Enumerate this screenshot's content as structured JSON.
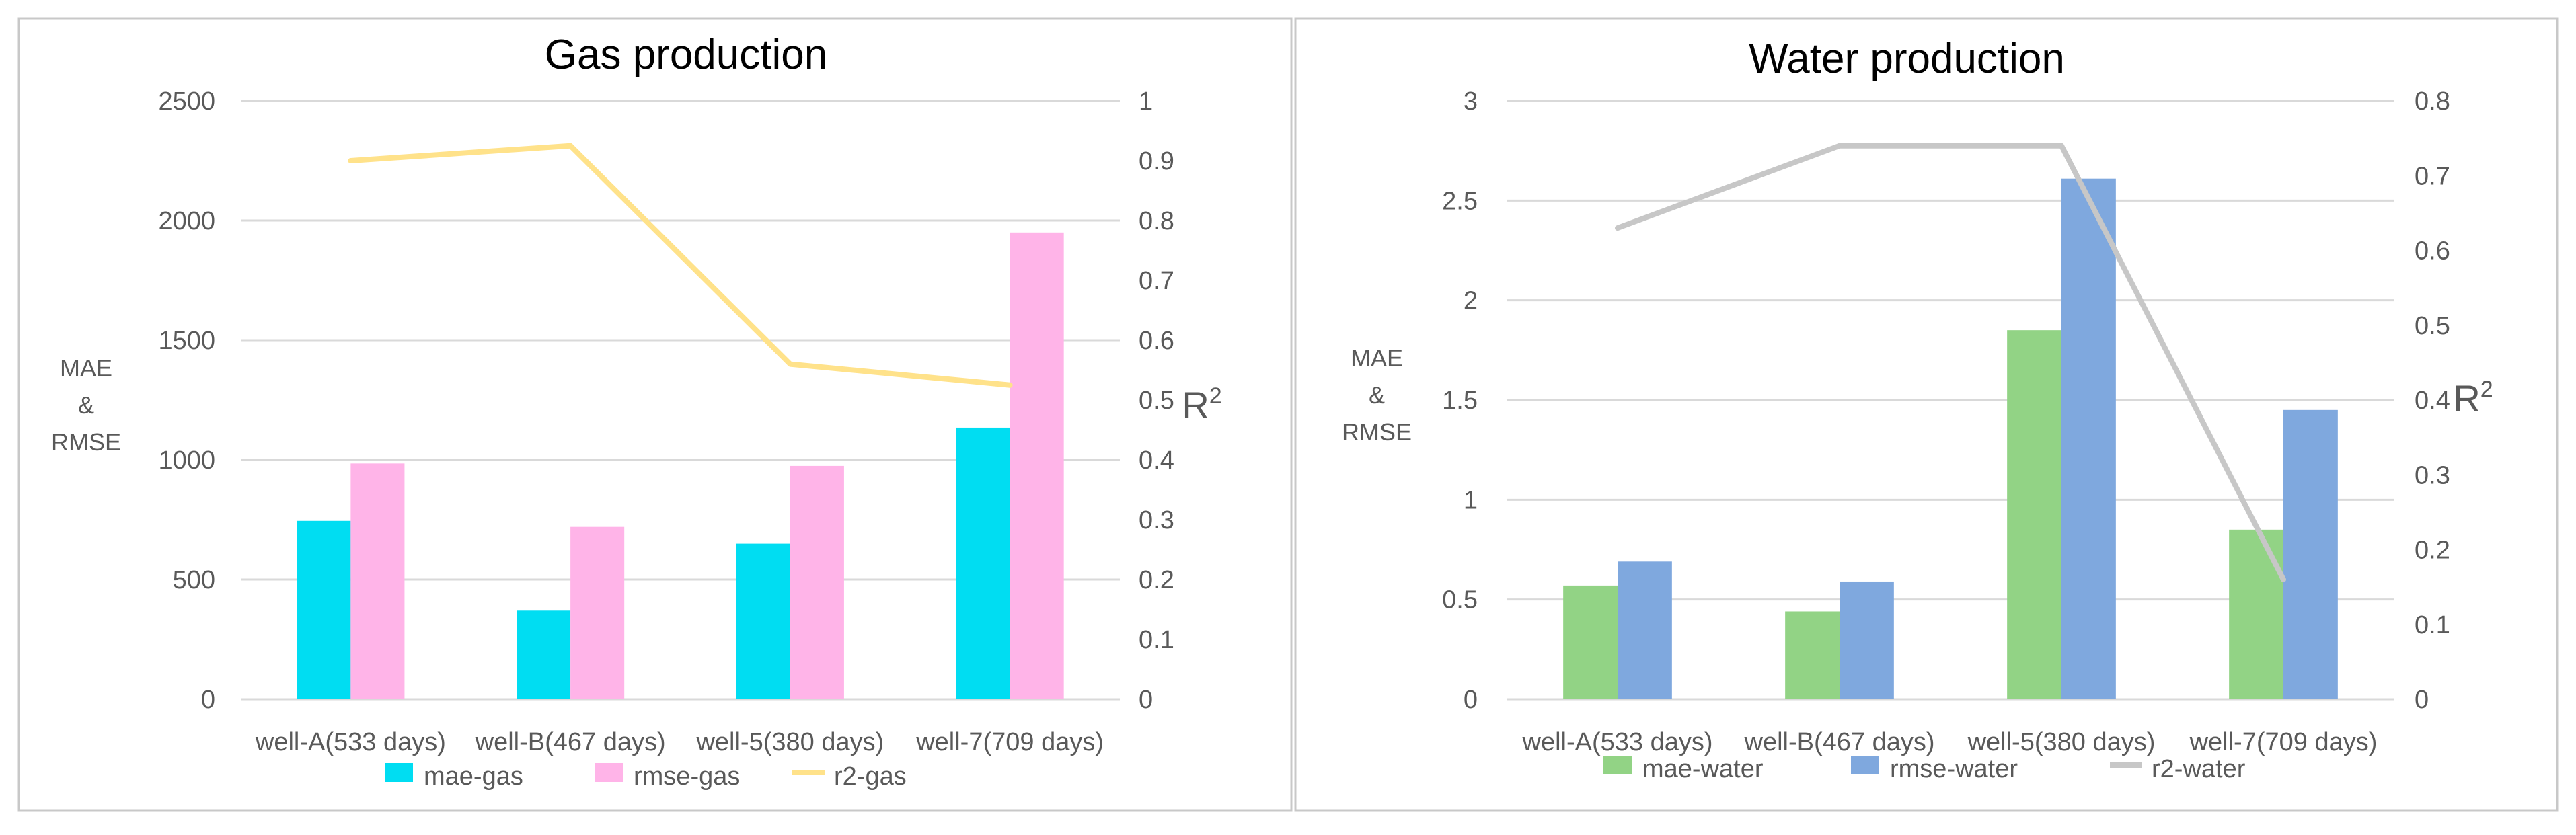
{
  "colors": {
    "mae_gas": "#00DDF2",
    "rmse_gas": "#FFB4E8",
    "r2_gas": "#FFE28A",
    "mae_water": "#92D385",
    "rmse_water": "#7FA8DE",
    "r2_water": "#C7C7C7",
    "grid": "#D9D9D9",
    "axis_text": "#595959",
    "title_text": "#000000",
    "frame": "#C8C8C8"
  },
  "chart_data": [
    {
      "type": "bar+line",
      "title": "Gas production",
      "categories": [
        "well-A(533 days)",
        "well-B(467 days)",
        "well-5(380 days)",
        "well-7(709 days)"
      ],
      "ylabel_left": [
        "MAE",
        "&",
        "RMSE"
      ],
      "ylabel_right": "R",
      "ylabel_right_sup": "2",
      "ylim_left": [
        0,
        2500
      ],
      "yticks_left": [
        "0",
        "500",
        "1000",
        "1500",
        "2000",
        "2500"
      ],
      "ylim_right": [
        0,
        1
      ],
      "yticks_right": [
        "0",
        "0.1",
        "0.2",
        "0.3",
        "0.4",
        "0.5",
        "0.6",
        "0.7",
        "0.8",
        "0.9",
        "1"
      ],
      "grid": true,
      "legend_position": "bottom",
      "series": [
        {
          "name": "mae-gas",
          "kind": "bar",
          "axis": "left",
          "color_key": "mae_gas",
          "values": [
            745,
            370,
            650,
            1135
          ]
        },
        {
          "name": "rmse-gas",
          "kind": "bar",
          "axis": "left",
          "color_key": "rmse_gas",
          "values": [
            985,
            720,
            975,
            1950
          ]
        },
        {
          "name": "r2-gas",
          "kind": "line",
          "axis": "right",
          "color_key": "r2_gas",
          "values": [
            0.9,
            0.925,
            0.56,
            0.525
          ]
        }
      ]
    },
    {
      "type": "bar+line",
      "title": "Water production",
      "categories": [
        "well-A(533 days)",
        "well-B(467 days)",
        "well-5(380 days)",
        "well-7(709 days)"
      ],
      "ylabel_left": [
        "MAE",
        "&",
        "RMSE"
      ],
      "ylabel_right": "R",
      "ylabel_right_sup": "2",
      "ylim_left": [
        0,
        3
      ],
      "yticks_left": [
        "0",
        "0.5",
        "1",
        "1.5",
        "2",
        "2.5",
        "3"
      ],
      "ylim_right": [
        0,
        0.8
      ],
      "yticks_right": [
        "0",
        "0.1",
        "0.2",
        "0.3",
        "0.4",
        "0.5",
        "0.6",
        "0.7",
        "0.8"
      ],
      "grid": true,
      "legend_position": "bottom",
      "series": [
        {
          "name": "mae-water",
          "kind": "bar",
          "axis": "left",
          "color_key": "mae_water",
          "values": [
            0.57,
            0.44,
            1.85,
            0.85
          ]
        },
        {
          "name": "rmse-water",
          "kind": "bar",
          "axis": "left",
          "color_key": "rmse_water",
          "values": [
            0.69,
            0.59,
            2.61,
            1.45
          ]
        },
        {
          "name": "r2-water",
          "kind": "line",
          "axis": "right",
          "color_key": "r2_water",
          "values": [
            0.63,
            0.74,
            0.74,
            0.16
          ]
        }
      ]
    }
  ]
}
